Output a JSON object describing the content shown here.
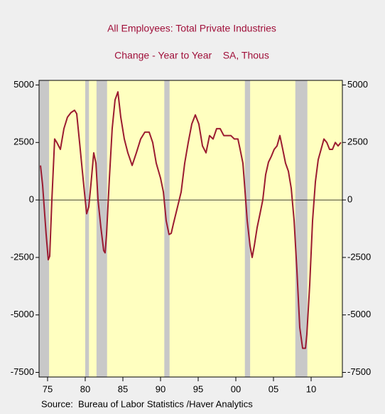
{
  "chart_data": {
    "type": "line",
    "title": "All Employees: Total Private Industries",
    "subtitle": "Change - Year to Year    SA, Thous",
    "source": "Source:  Bureau of Labor Statistics /Haver Analytics",
    "color": "#9b1b30",
    "plot_background": "#ffffc0",
    "recession_color": "#c8c8c8",
    "recessions": [
      [
        1973.9,
        1975.2
      ],
      [
        1980.0,
        1980.5
      ],
      [
        1981.5,
        1982.9
      ],
      [
        1990.5,
        1991.2
      ],
      [
        2001.2,
        2001.9
      ],
      [
        2007.9,
        2009.5
      ]
    ],
    "x": [
      1974.06,
      1974.34,
      1974.81,
      1975.09,
      1975.28,
      1975.57,
      1975.94,
      1976.23,
      1976.7,
      1977.17,
      1977.64,
      1978.11,
      1978.58,
      1978.87,
      1979.25,
      1979.62,
      1980.0,
      1980.19,
      1980.47,
      1980.75,
      1981.13,
      1981.42,
      1981.7,
      1982.08,
      1982.45,
      1982.64,
      1982.83,
      1983.21,
      1983.58,
      1983.96,
      1984.34,
      1984.72,
      1985.19,
      1985.66,
      1986.23,
      1986.79,
      1987.36,
      1987.92,
      1988.49,
      1988.96,
      1989.43,
      1990.0,
      1990.38,
      1990.75,
      1991.13,
      1991.42,
      1991.7,
      1992.26,
      1992.74,
      1993.21,
      1993.68,
      1994.15,
      1994.62,
      1995.09,
      1995.57,
      1996.04,
      1996.51,
      1996.98,
      1997.45,
      1997.92,
      1998.4,
      1998.87,
      1999.34,
      1999.81,
      2000.28,
      2000.57,
      2000.94,
      2001.23,
      2001.51,
      2001.89,
      2002.17,
      2002.45,
      2002.83,
      2003.21,
      2003.58,
      2003.96,
      2004.34,
      2004.72,
      2005.09,
      2005.47,
      2005.85,
      2006.23,
      2006.6,
      2006.98,
      2007.36,
      2007.74,
      2008.11,
      2008.49,
      2008.87,
      2009.25,
      2009.43,
      2009.81,
      2010.19,
      2010.57,
      2010.94,
      2011.32,
      2011.7,
      2012.08,
      2012.45,
      2012.83,
      2013.21,
      2013.58,
      2013.96
    ],
    "values": [
      1500,
      650,
      -1500,
      -2600,
      -2450,
      0,
      2650,
      2500,
      2200,
      3100,
      3600,
      3800,
      3900,
      3750,
      2500,
      1250,
      0,
      -600,
      -300,
      650,
      2050,
      1600,
      0,
      -1200,
      -2200,
      -2300,
      -1500,
      950,
      3100,
      4350,
      4700,
      3600,
      2650,
      2050,
      1500,
      2050,
      2650,
      2950,
      2950,
      2500,
      1600,
      950,
      350,
      -900,
      -1500,
      -1450,
      -1050,
      -300,
      350,
      1600,
      2500,
      3300,
      3700,
      3300,
      2350,
      2050,
      2800,
      2650,
      3100,
      3100,
      2800,
      2800,
      2800,
      2650,
      2650,
      2200,
      1600,
      350,
      -900,
      -2000,
      -2500,
      -2000,
      -1200,
      -600,
      0,
      1100,
      1650,
      1900,
      2200,
      2350,
      2800,
      2200,
      1600,
      1250,
      500,
      -900,
      -3050,
      -5550,
      -6450,
      -6450,
      -5850,
      -3700,
      -900,
      800,
      1750,
      2200,
      2650,
      2500,
      2200,
      2200,
      2500,
      2350,
      2500
    ],
    "xlim": [
      1973.87,
      2014.15
    ],
    "xticks": [
      {
        "value": 1975,
        "label": "75"
      },
      {
        "value": 1980,
        "label": "80"
      },
      {
        "value": 1985,
        "label": "85"
      },
      {
        "value": 1990,
        "label": "90"
      },
      {
        "value": 1995,
        "label": "95"
      },
      {
        "value": 2000,
        "label": "00"
      },
      {
        "value": 2005,
        "label": "05"
      },
      {
        "value": 2010,
        "label": "10"
      }
    ],
    "ylim": [
      -7700,
      5200
    ],
    "yticks": [
      -7500,
      -5000,
      -2500,
      0,
      2500,
      5000
    ]
  }
}
